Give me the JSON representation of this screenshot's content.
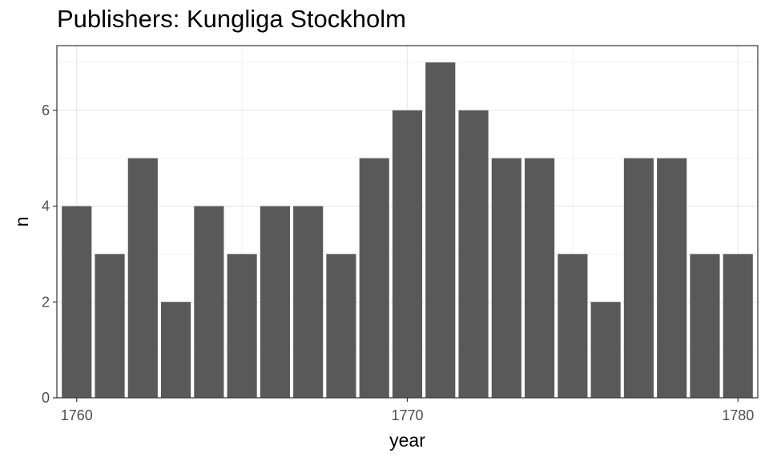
{
  "chart_data": {
    "type": "bar",
    "title": "Publishers: Kungliga Stockholm",
    "xlabel": "year",
    "ylabel": "n",
    "x": [
      1760,
      1761,
      1762,
      1763,
      1764,
      1765,
      1766,
      1767,
      1768,
      1769,
      1770,
      1771,
      1772,
      1773,
      1774,
      1775,
      1776,
      1777,
      1778,
      1779,
      1780
    ],
    "values": [
      4,
      3,
      5,
      2,
      4,
      3,
      4,
      4,
      3,
      5,
      6,
      7,
      6,
      5,
      5,
      3,
      2,
      5,
      5,
      3,
      3
    ],
    "xlim": [
      1759.4,
      1780.6
    ],
    "ylim": [
      0,
      7.35
    ],
    "x_ticks": [
      1760,
      1770,
      1780
    ],
    "y_ticks": [
      0,
      2,
      4,
      6
    ],
    "bar_color": "#595959",
    "grid": true,
    "legend": "none"
  }
}
